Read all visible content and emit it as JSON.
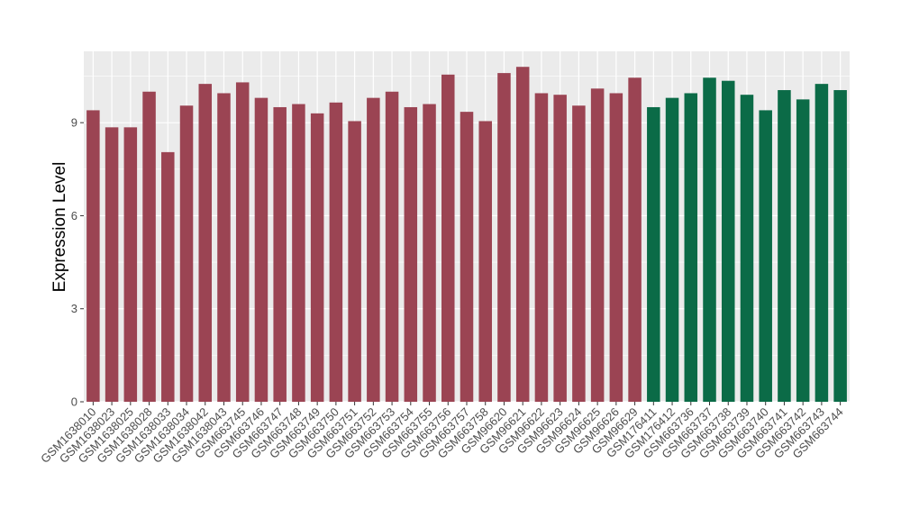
{
  "chart_data": {
    "type": "bar",
    "title": "",
    "xlabel": "",
    "ylabel": "Expression Level",
    "ylim": [
      0,
      11.3
    ],
    "yticks": [
      0,
      3,
      6,
      9
    ],
    "grid": true,
    "legend": "none",
    "colors": {
      "group1": "#9b4453",
      "group2": "#0b6b47",
      "panel": "#ebebeb",
      "grid": "#ffffff",
      "axis_text": "#4d4d4d"
    },
    "categories": [
      "GSM1638010",
      "GSM1638023",
      "GSM1638025",
      "GSM1638028",
      "GSM1638033",
      "GSM1638034",
      "GSM1638042",
      "GSM1638043",
      "GSM663745",
      "GSM663746",
      "GSM663747",
      "GSM663748",
      "GSM663749",
      "GSM663750",
      "GSM663751",
      "GSM663752",
      "GSM663753",
      "GSM663754",
      "GSM663755",
      "GSM663756",
      "GSM663757",
      "GSM663758",
      "GSM96620",
      "GSM96621",
      "GSM96622",
      "GSM96623",
      "GSM96624",
      "GSM96625",
      "GSM96626",
      "GSM96629",
      "GSM176411",
      "GSM176412",
      "GSM663736",
      "GSM663737",
      "GSM663738",
      "GSM663739",
      "GSM663740",
      "GSM663741",
      "GSM663742",
      "GSM663743",
      "GSM663744"
    ],
    "values": [
      9.4,
      8.85,
      8.85,
      10.0,
      8.05,
      9.55,
      10.25,
      9.95,
      10.3,
      9.8,
      9.5,
      9.6,
      9.3,
      9.65,
      9.05,
      9.8,
      10.0,
      9.5,
      9.6,
      10.55,
      9.35,
      9.05,
      10.6,
      10.8,
      9.95,
      9.9,
      9.55,
      10.1,
      9.95,
      10.45,
      9.5,
      9.8,
      9.95,
      10.45,
      10.35,
      9.9,
      9.4,
      10.05,
      9.75,
      10.25,
      10.05
    ],
    "groups": [
      1,
      1,
      1,
      1,
      1,
      1,
      1,
      1,
      1,
      1,
      1,
      1,
      1,
      1,
      1,
      1,
      1,
      1,
      1,
      1,
      1,
      1,
      1,
      1,
      1,
      1,
      1,
      1,
      1,
      1,
      2,
      2,
      2,
      2,
      2,
      2,
      2,
      2,
      2,
      2,
      2
    ]
  }
}
